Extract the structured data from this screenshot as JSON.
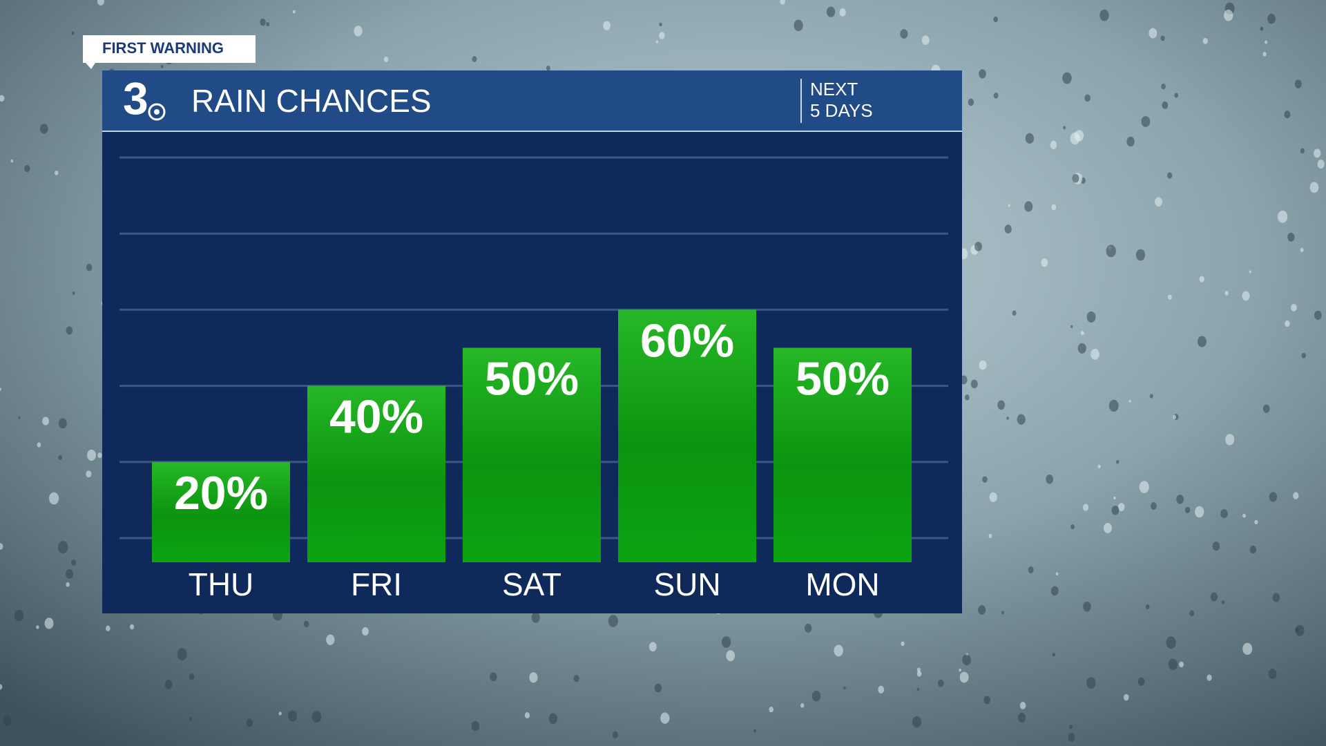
{
  "chart_data": {
    "type": "bar",
    "badge": "FIRST WARNING",
    "logo": "3",
    "title": "RAIN CHANCES",
    "subtitle": [
      "NEXT",
      "5 DAYS"
    ],
    "categories": [
      "THU",
      "FRI",
      "SAT",
      "SUN",
      "MON"
    ],
    "values": [
      20,
      40,
      50,
      60,
      50
    ],
    "value_labels": [
      "20%",
      "40%",
      "50%",
      "60%",
      "50%"
    ],
    "color": "#14a814",
    "ylim": [
      0,
      100
    ],
    "yticks": [
      0,
      20,
      40,
      60,
      80,
      100
    ],
    "grid": true
  }
}
